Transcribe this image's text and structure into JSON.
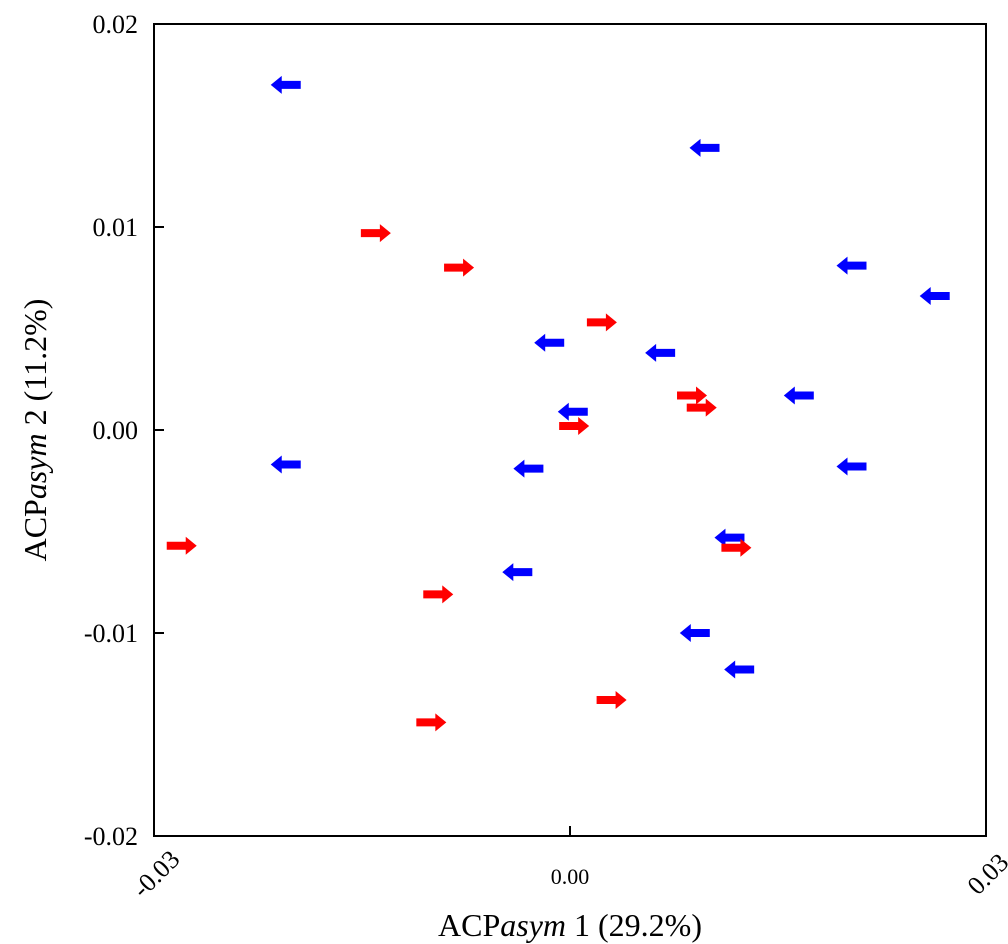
{
  "chart_data": {
    "type": "scatter",
    "xlabel_prefix": "ACP",
    "xlabel_italic": "asym",
    "xlabel_suffix": " 1 (29.2%)",
    "ylabel_prefix": "ACP",
    "ylabel_italic": "asym",
    "ylabel_suffix": " 2 (11.2%)",
    "xlim": [
      -0.03,
      0.03
    ],
    "ylim": [
      -0.02,
      0.02
    ],
    "x_ticks": [
      {
        "value": -0.03,
        "label": "-0.03"
      },
      {
        "value": 0.0,
        "label": "0.00"
      },
      {
        "value": 0.03,
        "label": "0.03"
      }
    ],
    "y_ticks": [
      {
        "value": 0.02,
        "label": "0.02"
      },
      {
        "value": 0.01,
        "label": "0.01"
      },
      {
        "value": 0.0,
        "label": "0.00"
      },
      {
        "value": -0.01,
        "label": "-0.01"
      },
      {
        "value": -0.02,
        "label": "-0.02"
      }
    ],
    "grid": false,
    "series": [
      {
        "marker": "left-arrow",
        "color": "#0000ff",
        "points": [
          {
            "x": -0.0205,
            "y": 0.017
          },
          {
            "x": 0.0097,
            "y": 0.0139
          },
          {
            "x": 0.0203,
            "y": 0.0081
          },
          {
            "x": 0.0263,
            "y": 0.0066
          },
          {
            "x": -0.0015,
            "y": 0.0043
          },
          {
            "x": 0.0065,
            "y": 0.0038
          },
          {
            "x": 0.0165,
            "y": 0.0017
          },
          {
            "x": 0.0002,
            "y": 0.0009
          },
          {
            "x": -0.0205,
            "y": -0.0017
          },
          {
            "x": -0.003,
            "y": -0.0019
          },
          {
            "x": 0.0203,
            "y": -0.0018
          },
          {
            "x": 0.0115,
            "y": -0.0053
          },
          {
            "x": -0.0038,
            "y": -0.007
          },
          {
            "x": 0.009,
            "y": -0.01
          },
          {
            "x": 0.0122,
            "y": -0.0118
          }
        ]
      },
      {
        "marker": "right-arrow",
        "color": "#ff0000",
        "points": [
          {
            "x": -0.014,
            "y": 0.0097
          },
          {
            "x": -0.008,
            "y": 0.008
          },
          {
            "x": 0.0023,
            "y": 0.0053
          },
          {
            "x": 0.0088,
            "y": 0.0017
          },
          {
            "x": 0.0095,
            "y": 0.0011
          },
          {
            "x": 0.0003,
            "y": 0.0002
          },
          {
            "x": -0.028,
            "y": -0.0057
          },
          {
            "x": 0.012,
            "y": -0.0058
          },
          {
            "x": -0.0095,
            "y": -0.0081
          },
          {
            "x": 0.003,
            "y": -0.0133
          },
          {
            "x": -0.01,
            "y": -0.0144
          }
        ]
      }
    ]
  }
}
